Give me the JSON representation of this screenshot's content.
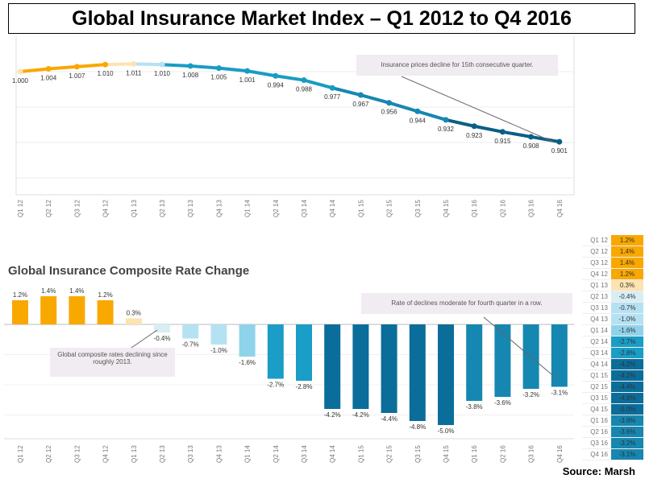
{
  "title": "Global Insurance Market Index – Q1 2012 to Q4 2016",
  "source": "Source: Marsh",
  "colors": {
    "orange": "#f9a800",
    "light_orange": "#fde3b0",
    "pale_blue": "#d8eef5",
    "light_blue": "#b5e2f2",
    "mid_blue": "#8fd3ea",
    "teal": "#1a9dc6",
    "dark_blue": "#0b6d9a",
    "line": "#1687b0"
  },
  "chart_data": [
    {
      "type": "line",
      "title": "",
      "categories": [
        "Q1 12",
        "Q2 12",
        "Q3 12",
        "Q4 12",
        "Q1 13",
        "Q2 13",
        "Q3 13",
        "Q4 13",
        "Q1 14",
        "Q2 14",
        "Q3 14",
        "Q4 14",
        "Q1 15",
        "Q2 15",
        "Q3 15",
        "Q4 15",
        "Q1 16",
        "Q2 16",
        "Q3 16",
        "Q4 16"
      ],
      "values": [
        1.0,
        1.004,
        1.007,
        1.01,
        1.011,
        1.01,
        1.008,
        1.005,
        1.001,
        0.994,
        0.988,
        0.977,
        0.967,
        0.956,
        0.944,
        0.932,
        0.923,
        0.915,
        0.908,
        0.901
      ],
      "labels": [
        "1.000",
        "1.004",
        "1.007",
        "1.010",
        "1.011",
        "1.010",
        "1.008",
        "1.005",
        "1.001",
        "0.994",
        "0.988",
        "0.977",
        "0.967",
        "0.956",
        "0.944",
        "0.932",
        "0.923",
        "0.915",
        "0.908",
        "0.901"
      ],
      "ylim": [
        0.815,
        1.05
      ],
      "grid": true,
      "annotation": "Insurance prices decline for 15th consecutive quarter."
    },
    {
      "type": "bar",
      "title": "Global Insurance Composite Rate Change",
      "categories": [
        "Q1 12",
        "Q2 12",
        "Q3 12",
        "Q4 12",
        "Q1 13",
        "Q2 13",
        "Q3 13",
        "Q4 13",
        "Q1 14",
        "Q2 14",
        "Q3 14",
        "Q4 14",
        "Q1 15",
        "Q2 15",
        "Q3 15",
        "Q4 15",
        "Q1 16",
        "Q2 16",
        "Q3 16",
        "Q4 16"
      ],
      "values": [
        1.2,
        1.4,
        1.4,
        1.2,
        0.3,
        -0.4,
        -0.7,
        -1.0,
        -1.6,
        -2.7,
        -2.8,
        -4.2,
        -4.2,
        -4.4,
        -4.8,
        -5.0,
        -3.8,
        -3.6,
        -3.2,
        -3.1
      ],
      "labels": [
        "1.2%",
        "1.4%",
        "1.4%",
        "1.2%",
        "0.3%",
        "-0.4%",
        "-0.7%",
        "-1.0%",
        "-1.6%",
        "-2.7%",
        "-2.8%",
        "-4.2%",
        "-4.2%",
        "-4.4%",
        "-4.8%",
        "-5.0%",
        "-3.8%",
        "-3.6%",
        "-3.2%",
        "-3.1%"
      ],
      "ylim": [
        -5.8,
        2.0
      ],
      "grid": true,
      "annotations": [
        "Global composite rates declining since roughly 2013.",
        "Rate of declines moderate for fourth quarter in a row."
      ]
    },
    {
      "type": "table",
      "rows": [
        [
          "Q1 12",
          "1.2%"
        ],
        [
          "Q2 12",
          "1.4%"
        ],
        [
          "Q3 12",
          "1.4%"
        ],
        [
          "Q4 12",
          "1.2%"
        ],
        [
          "Q1 13",
          "0.3%"
        ],
        [
          "Q2 13",
          "-0.4%"
        ],
        [
          "Q3 13",
          "-0.7%"
        ],
        [
          "Q4 13",
          "-1.0%"
        ],
        [
          "Q1 14",
          "-1.6%"
        ],
        [
          "Q2 14",
          "-2.7%"
        ],
        [
          "Q3 14",
          "-2.8%"
        ],
        [
          "Q4 14",
          "-4.2%"
        ],
        [
          "Q1 15",
          "-4.2%"
        ],
        [
          "Q2 15",
          "-4.4%"
        ],
        [
          "Q3 15",
          "-4.8%"
        ],
        [
          "Q4 15",
          "-5.0%"
        ],
        [
          "Q1 16",
          "-3.8%"
        ],
        [
          "Q2 16",
          "-3.6%"
        ],
        [
          "Q3 16",
          "-3.2%"
        ],
        [
          "Q4 16",
          "-3.1%"
        ]
      ]
    }
  ]
}
